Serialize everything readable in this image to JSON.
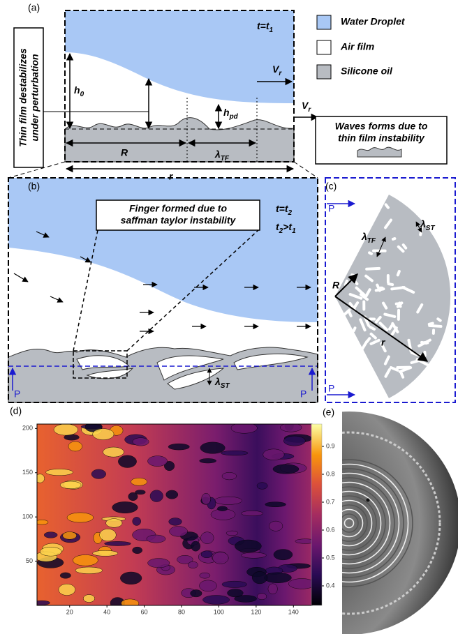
{
  "panel_a": {
    "label": "(a)",
    "time": {
      "parts": [
        "t=t",
        "1"
      ]
    },
    "h0": {
      "parts": [
        "h",
        "0"
      ]
    },
    "vr_drop": {
      "parts": [
        "V",
        "r"
      ]
    },
    "vr_film": {
      "parts": [
        "V",
        "r"
      ]
    },
    "hpd": {
      "parts": [
        "h",
        "pd"
      ]
    },
    "R": "R",
    "lambda_tf": {
      "parts": [
        "λ",
        "TF"
      ]
    },
    "r": "r",
    "side_note": [
      "Thin film destabilizes",
      "under perturbation"
    ],
    "legend": [
      "Water Droplet",
      "Air film",
      "Silicone oil"
    ],
    "waves_note": [
      "Waves forms due to",
      "thin film instability"
    ]
  },
  "panel_b": {
    "label": "(b)",
    "note": [
      "Finger formed due to",
      "saffman taylor instability"
    ],
    "time": {
      "parts": [
        "t=t",
        "2"
      ]
    },
    "order": {
      "parts": [
        "t",
        "2",
        ">t",
        "1"
      ]
    },
    "lambda_st": {
      "parts": [
        "λ",
        "ST"
      ]
    },
    "p_left": "P",
    "p_right": "P"
  },
  "panel_c": {
    "label": "(c)",
    "p_top": "P",
    "p_bottom": "P",
    "lambda_st": {
      "parts": [
        "λ",
        "ST"
      ]
    },
    "lambda_tf": {
      "parts": [
        "λ",
        "TF"
      ]
    },
    "R": "R",
    "r": "r"
  },
  "panel_d": {
    "label": "(d)",
    "xlim": [
      2.5,
      150
    ],
    "ylim": [
      0,
      205
    ],
    "xticks": [
      20,
      40,
      60,
      80,
      100,
      120,
      140
    ],
    "yticks": [
      50,
      100,
      150,
      200
    ],
    "clim": [
      0.33,
      0.98
    ],
    "cticks": [
      0.4,
      0.5,
      0.6,
      0.7,
      0.8,
      0.9
    ]
  },
  "panel_e": {
    "label": "(e)"
  }
}
